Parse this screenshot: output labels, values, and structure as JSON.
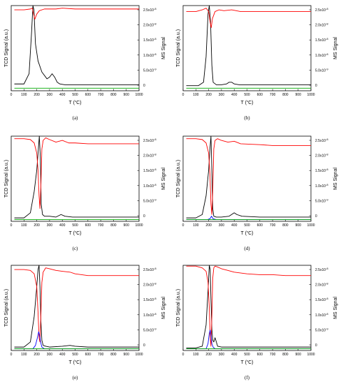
{
  "chart_data": [
    {
      "type": "line",
      "caption": "(a)",
      "ylabel": "TCD Signal (a.u.)",
      "y2label": "MS Signal",
      "xlim": [
        0,
        1000
      ],
      "xticks": [
        0,
        100,
        200,
        300,
        400,
        500,
        600,
        700,
        800,
        900,
        1000
      ],
      "y2lim": [
        0,
        2.5e-08
      ],
      "y2ticks": [
        "0",
        "5.0x10-9",
        "1.0x10-8",
        "1.5x10-8",
        "2.0x10-8",
        "2.5x10-8"
      ],
      "series": [
        {
          "color": "#000000",
          "x": [
            25,
            100,
            140,
            160,
            170,
            178,
            190,
            210,
            240,
            280,
            300,
            320,
            340,
            360,
            380,
            420,
            500,
            600,
            700,
            800,
            900,
            1000
          ],
          "y": [
            0.08,
            0.08,
            0.2,
            0.7,
            1.0,
            0.95,
            0.55,
            0.35,
            0.22,
            0.14,
            0.16,
            0.2,
            0.16,
            0.1,
            0.08,
            0.07,
            0.07,
            0.07,
            0.07,
            0.07,
            0.07,
            0.07
          ]
        },
        {
          "color": "#ff0000",
          "x": [
            25,
            100,
            150,
            165,
            175,
            185,
            200,
            220,
            260,
            300,
            350,
            400,
            500,
            600,
            700,
            800,
            900,
            1000
          ],
          "y": [
            0.95,
            0.95,
            0.96,
            0.97,
            0.9,
            0.84,
            0.9,
            0.94,
            0.96,
            0.96,
            0.96,
            0.97,
            0.96,
            0.96,
            0.96,
            0.96,
            0.96,
            0.96
          ]
        },
        {
          "color": "#00aa00",
          "x": [
            25,
            1000
          ],
          "y": [
            0.03,
            0.03
          ]
        }
      ]
    },
    {
      "type": "line",
      "caption": "(b)",
      "ylabel": "TCD Signal (a.u.)",
      "y2label": "MS Signal",
      "xlim": [
        0,
        1000
      ],
      "xticks": [
        0,
        100,
        200,
        300,
        400,
        500,
        600,
        700,
        800,
        900,
        1000
      ],
      "y2lim": [
        0,
        2.5e-08
      ],
      "y2ticks": [
        "0",
        "5.0x10-9",
        "1.0x10-8",
        "1.5x10-8",
        "2.0x10-8",
        "2.5x10-8"
      ],
      "series": [
        {
          "color": "#000000",
          "x": [
            25,
            120,
            160,
            180,
            195,
            205,
            215,
            225,
            235,
            260,
            300,
            340,
            360,
            380,
            400,
            440,
            500,
            600,
            700,
            800,
            900,
            1000
          ],
          "y": [
            0.06,
            0.06,
            0.1,
            0.4,
            0.9,
            1.0,
            0.8,
            0.3,
            0.1,
            0.07,
            0.07,
            0.08,
            0.1,
            0.1,
            0.08,
            0.07,
            0.07,
            0.07,
            0.07,
            0.07,
            0.07,
            0.07
          ]
        },
        {
          "color": "#ff0000",
          "x": [
            25,
            100,
            150,
            180,
            200,
            210,
            220,
            230,
            250,
            280,
            320,
            380,
            450,
            600,
            700,
            800,
            900,
            1000
          ],
          "y": [
            0.93,
            0.93,
            0.95,
            0.97,
            0.93,
            0.82,
            0.74,
            0.85,
            0.93,
            0.95,
            0.94,
            0.95,
            0.93,
            0.93,
            0.93,
            0.93,
            0.93,
            0.93
          ]
        },
        {
          "color": "#00aa00",
          "x": [
            25,
            1000
          ],
          "y": [
            0.03,
            0.03
          ]
        }
      ]
    },
    {
      "type": "line",
      "caption": "(c)",
      "ylabel": "TCD Signal (a.u.)",
      "y2label": "MS Signal",
      "xlim": [
        0,
        1000
      ],
      "xticks": [
        0,
        100,
        200,
        300,
        400,
        500,
        600,
        700,
        800,
        900,
        1000
      ],
      "y2lim": [
        0,
        2.5e-08
      ],
      "y2ticks": [
        "0",
        "5.0x10-9",
        "1.0x10-8",
        "1.5x10-8",
        "2.0x10-8",
        "2.5x10-8"
      ],
      "series": [
        {
          "color": "#000000",
          "x": [
            25,
            100,
            150,
            180,
            200,
            210,
            220,
            228,
            235,
            245,
            260,
            300,
            350,
            390,
            420,
            480,
            600,
            700,
            800,
            900,
            1000
          ],
          "y": [
            0.04,
            0.04,
            0.1,
            0.35,
            0.6,
            0.8,
            1.0,
            0.75,
            0.2,
            0.08,
            0.06,
            0.06,
            0.05,
            0.08,
            0.06,
            0.05,
            0.05,
            0.05,
            0.05,
            0.05,
            0.05
          ]
        },
        {
          "color": "#ff0000",
          "x": [
            25,
            100,
            150,
            180,
            200,
            210,
            218,
            225,
            232,
            240,
            250,
            270,
            300,
            350,
            400,
            450,
            500,
            600,
            700,
            800,
            900,
            1000
          ],
          "y": [
            0.97,
            0.97,
            0.96,
            0.92,
            0.8,
            0.6,
            0.3,
            0.15,
            0.4,
            0.85,
            0.95,
            0.98,
            0.96,
            0.93,
            0.95,
            0.92,
            0.92,
            0.91,
            0.91,
            0.91,
            0.91,
            0.91
          ]
        },
        {
          "color": "#00aa00",
          "x": [
            25,
            1000
          ],
          "y": [
            0.02,
            0.02
          ]
        }
      ]
    },
    {
      "type": "line",
      "caption": "(d)",
      "ylabel": "TCD Signal (a.u.)",
      "y2label": "MS Signal",
      "xlim": [
        0,
        1000
      ],
      "xticks": [
        0,
        100,
        200,
        300,
        400,
        500,
        600,
        700,
        800,
        900,
        1000
      ],
      "y2lim": [
        0,
        2.5e-08
      ],
      "y2ticks": [
        "0",
        "5.0x10-9",
        "1.0x10-8",
        "1.5x10-8",
        "2.0x10-8",
        "2.5x10-8"
      ],
      "series": [
        {
          "color": "#000000",
          "x": [
            25,
            100,
            150,
            180,
            200,
            210,
            218,
            225,
            232,
            240,
            260,
            300,
            360,
            400,
            420,
            460,
            600,
            700,
            800,
            900,
            1000
          ],
          "y": [
            0.04,
            0.04,
            0.08,
            0.3,
            0.6,
            0.85,
            1.0,
            0.6,
            0.15,
            0.06,
            0.05,
            0.05,
            0.06,
            0.1,
            0.08,
            0.06,
            0.05,
            0.05,
            0.05,
            0.05,
            0.05
          ]
        },
        {
          "color": "#ff0000",
          "x": [
            25,
            100,
            150,
            180,
            200,
            210,
            218,
            225,
            232,
            240,
            250,
            270,
            300,
            350,
            400,
            450,
            600,
            700,
            800,
            900,
            1000
          ],
          "y": [
            0.97,
            0.97,
            0.96,
            0.92,
            0.8,
            0.55,
            0.2,
            0.08,
            0.35,
            0.85,
            0.95,
            0.97,
            0.95,
            0.93,
            0.94,
            0.91,
            0.9,
            0.89,
            0.89,
            0.89,
            0.89
          ]
        },
        {
          "color": "#0000ff",
          "x": [
            25,
            190,
            210,
            222,
            235,
            260,
            1000
          ],
          "y": [
            0.02,
            0.02,
            0.03,
            0.06,
            0.03,
            0.02,
            0.02
          ]
        },
        {
          "color": "#00aa00",
          "x": [
            25,
            1000
          ],
          "y": [
            0.02,
            0.02
          ]
        }
      ]
    },
    {
      "type": "line",
      "caption": "(e)",
      "ylabel": "TCD Signal (a.u.)",
      "y2label": "MS Signal",
      "xlim": [
        0,
        1000
      ],
      "xticks": [
        0,
        100,
        200,
        300,
        400,
        500,
        600,
        700,
        800,
        900,
        1000
      ],
      "y2lim": [
        0,
        2.5e-08
      ],
      "y2ticks": [
        "0",
        "5.0x10-9",
        "1.0x10-8",
        "1.5x10-8",
        "2.0x10-8",
        "2.5x10-8"
      ],
      "series": [
        {
          "color": "#000000",
          "x": [
            25,
            100,
            150,
            180,
            200,
            210,
            218,
            225,
            232,
            240,
            250,
            270,
            300,
            400,
            460,
            500,
            600,
            700,
            800,
            900,
            1000
          ],
          "y": [
            0.04,
            0.04,
            0.1,
            0.4,
            0.75,
            0.95,
            1.0,
            0.75,
            0.35,
            0.12,
            0.06,
            0.05,
            0.04,
            0.05,
            0.06,
            0.05,
            0.04,
            0.04,
            0.04,
            0.04,
            0.04
          ]
        },
        {
          "color": "#ff0000",
          "x": [
            25,
            100,
            150,
            180,
            200,
            210,
            218,
            225,
            232,
            240,
            250,
            270,
            300,
            350,
            400,
            460,
            500,
            600,
            700,
            800,
            900,
            1000
          ],
          "y": [
            0.95,
            0.95,
            0.94,
            0.9,
            0.75,
            0.45,
            0.15,
            0.1,
            0.4,
            0.8,
            0.92,
            0.97,
            0.96,
            0.94,
            0.93,
            0.92,
            0.9,
            0.88,
            0.88,
            0.88,
            0.88,
            0.88
          ]
        },
        {
          "color": "#0000ff",
          "x": [
            25,
            170,
            190,
            205,
            215,
            222,
            230,
            240,
            260,
            1000
          ],
          "y": [
            0.02,
            0.02,
            0.06,
            0.15,
            0.22,
            0.18,
            0.1,
            0.04,
            0.02,
            0.02
          ]
        },
        {
          "color": "#00aa00",
          "x": [
            25,
            1000
          ],
          "y": [
            0.02,
            0.02
          ]
        }
      ]
    },
    {
      "type": "line",
      "caption": "(f)",
      "ylabel": "TCD Signal (a.u.)",
      "y2label": "MS Signal",
      "xlim": [
        0,
        1000
      ],
      "xticks": [
        0,
        100,
        200,
        300,
        400,
        500,
        600,
        700,
        800,
        900,
        1000
      ],
      "y2lim": [
        0,
        2.5e-08
      ],
      "y2ticks": [
        "0",
        "5.0x10-9",
        "1.0x10-8",
        "1.5x10-8",
        "2.0x10-8",
        "2.5x10-8"
      ],
      "series": [
        {
          "color": "#000000",
          "x": [
            25,
            100,
            150,
            180,
            195,
            205,
            212,
            218,
            225,
            232,
            240,
            250,
            260,
            270,
            300,
            400,
            500,
            600,
            700,
            800,
            900,
            1000
          ],
          "y": [
            0.03,
            0.03,
            0.05,
            0.3,
            0.7,
            1.0,
            0.95,
            0.6,
            0.25,
            0.12,
            0.1,
            0.15,
            0.1,
            0.05,
            0.04,
            0.04,
            0.04,
            0.04,
            0.04,
            0.04,
            0.04,
            0.04
          ]
        },
        {
          "color": "#ff0000",
          "x": [
            25,
            100,
            150,
            180,
            195,
            205,
            212,
            218,
            225,
            232,
            240,
            250,
            270,
            300,
            350,
            400,
            500,
            600,
            700,
            800,
            900,
            1000
          ],
          "y": [
            0.99,
            0.99,
            0.97,
            0.93,
            0.8,
            0.5,
            0.15,
            0.05,
            0.4,
            0.85,
            0.97,
            0.99,
            0.98,
            0.96,
            0.94,
            0.92,
            0.9,
            0.89,
            0.89,
            0.88,
            0.88,
            0.88
          ]
        },
        {
          "color": "#0000ff",
          "x": [
            25,
            180,
            195,
            205,
            212,
            218,
            225,
            235,
            250,
            1000
          ],
          "y": [
            0.02,
            0.02,
            0.08,
            0.2,
            0.24,
            0.18,
            0.08,
            0.04,
            0.02,
            0.02
          ]
        },
        {
          "color": "#00aa00",
          "x": [
            25,
            1000
          ],
          "y": [
            0.02,
            0.02
          ]
        }
      ]
    }
  ],
  "figure": {
    "xlabel_main": "T (",
    "xlabel_sup": "o",
    "xlabel_end": "C)"
  }
}
